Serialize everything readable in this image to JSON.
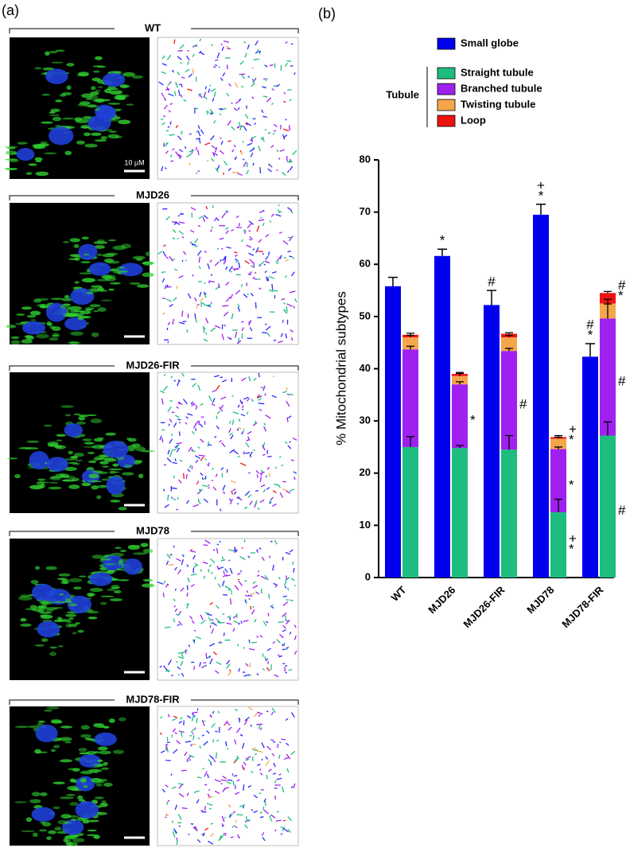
{
  "panel_a": {
    "label": "(a)",
    "scale_bar": "10 µM",
    "rows": [
      {
        "label": "WT"
      },
      {
        "label": "MJD26"
      },
      {
        "label": "MJD26-FIR"
      },
      {
        "label": "MJD78"
      },
      {
        "label": "MJD78-FIR"
      }
    ]
  },
  "chart_data": {
    "type": "grouped_stacked_bar",
    "panel_label": "(b)",
    "ylabel": "% Mitochondrial subtypes",
    "categories": [
      "WT",
      "MJD26",
      "MJD26-FIR",
      "MJD78",
      "MJD78-FIR"
    ],
    "ylim": [
      0,
      80
    ],
    "yticks": [
      0,
      10,
      20,
      30,
      40,
      50,
      60,
      70,
      80
    ],
    "series": [
      {
        "name": "Small globe",
        "color": "#0000ee",
        "values": [
          55.8,
          61.6,
          52.2,
          69.5,
          42.3
        ],
        "errors": [
          1.7,
          1.3,
          2.8,
          2.0,
          2.5
        ],
        "significance": [
          [],
          [
            "*"
          ],
          [
            "#"
          ],
          [
            "+",
            "*"
          ],
          [
            "#",
            "*"
          ]
        ]
      }
    ],
    "stacked": {
      "label": "Tubule",
      "series": [
        {
          "name": "Straight tubule",
          "color": "#1dbd7f",
          "values": [
            25.0,
            24.8,
            24.5,
            12.5,
            27.2
          ],
          "errors": [
            2.0,
            0.5,
            2.7,
            2.5,
            2.6
          ],
          "significance": [
            [],
            [],
            [],
            [
              "+",
              "*"
            ],
            [
              "#"
            ]
          ]
        },
        {
          "name": "Branched tubule",
          "color": "#a020f0",
          "values": [
            18.7,
            12.2,
            18.9,
            12.1,
            22.4
          ],
          "errors": [
            0.6,
            0.5,
            0.5,
            0.4,
            2.8
          ],
          "significance": [
            [],
            [
              "*"
            ],
            [
              "#"
            ],
            [
              "*"
            ],
            [
              "#"
            ]
          ]
        },
        {
          "name": "Twisting tubule",
          "color": "#f5a64a",
          "values": [
            2.3,
            1.6,
            2.6,
            2.0,
            2.9
          ],
          "errors": [
            0.4,
            0.5,
            0.4,
            0.3,
            0.8
          ],
          "significance": [
            [],
            [],
            [],
            [],
            []
          ]
        },
        {
          "name": "Loop",
          "color": "#ee1111",
          "values": [
            0.5,
            0.4,
            0.7,
            0.3,
            2.0
          ],
          "errors": [
            0.3,
            0.3,
            0.2,
            0.3,
            0.3
          ],
          "significance": [
            [],
            [],
            [],
            [
              "+",
              "*"
            ],
            [
              "#",
              "*"
            ]
          ]
        }
      ]
    }
  }
}
